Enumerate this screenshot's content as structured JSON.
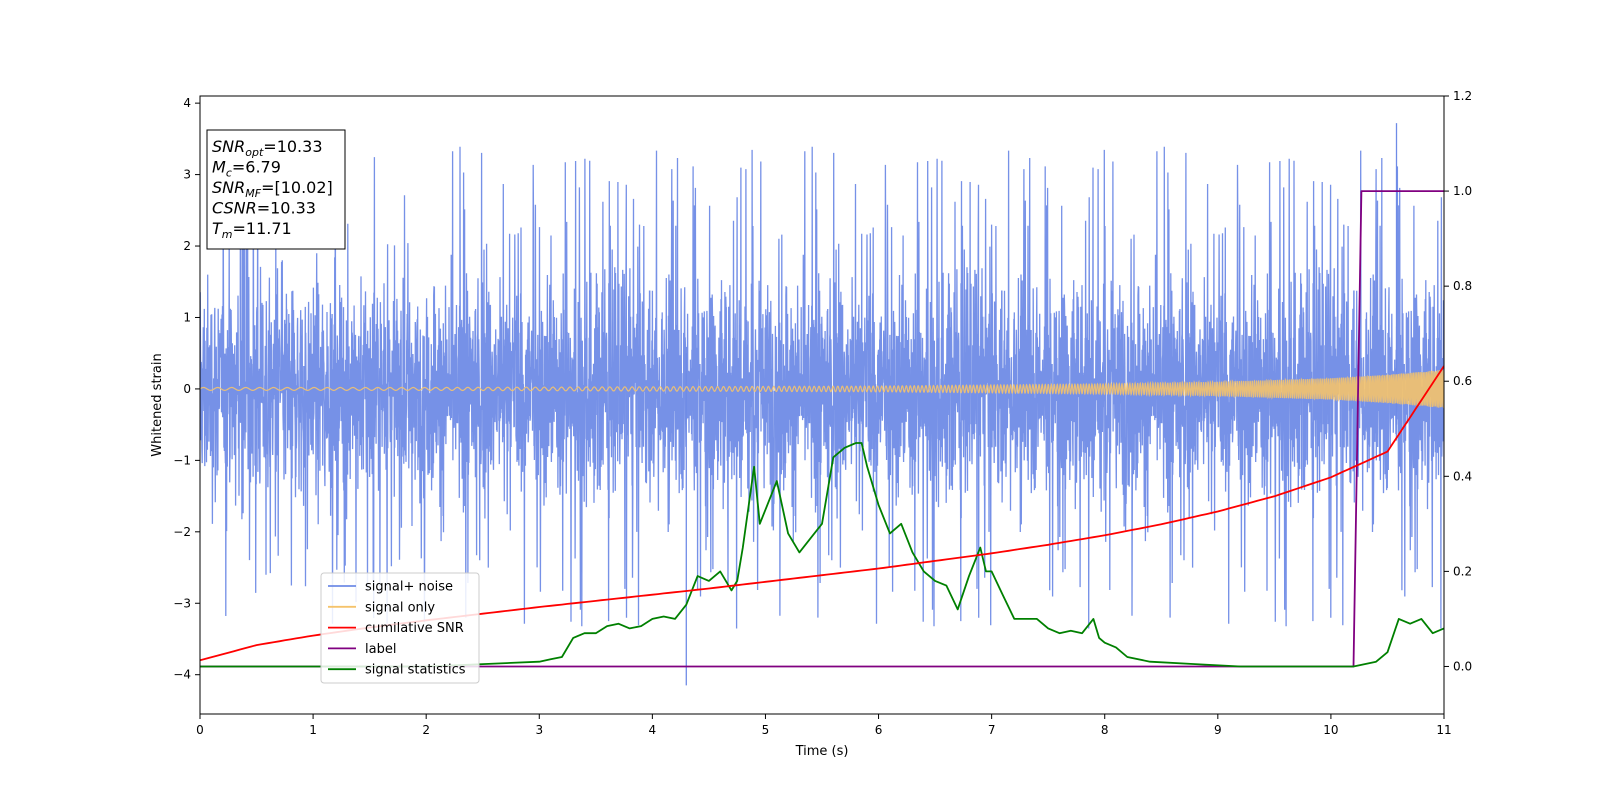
{
  "chart_data": {
    "type": "line",
    "xlabel": "Time (s)",
    "ylabel": "Whitened strain",
    "xlim": [
      0,
      11
    ],
    "ylim": [
      -4.55,
      4.1
    ],
    "y2lim": [
      -0.1,
      1.2
    ],
    "xticks": [
      0,
      1,
      2,
      3,
      4,
      5,
      6,
      7,
      8,
      9,
      10,
      11
    ],
    "yticks": [
      -4,
      -3,
      -2,
      -1,
      0,
      1,
      2,
      3,
      4
    ],
    "y2ticks": [
      0.0,
      0.2,
      0.4,
      0.6,
      0.8,
      1.0,
      1.2
    ],
    "xtick_labels": [
      "0",
      "1",
      "2",
      "3",
      "4",
      "5",
      "6",
      "7",
      "8",
      "9",
      "10",
      "11"
    ],
    "ytick_labels": [
      "−4",
      "−3",
      "−2",
      "−1",
      "0",
      "1",
      "2",
      "3",
      "4"
    ],
    "y2tick_labels": [
      "0.0",
      "0.2",
      "0.4",
      "0.6",
      "0.8",
      "1.0",
      "1.2"
    ],
    "grid": false,
    "legend_position": "lower-left",
    "annotation_box": {
      "position": "upper-left",
      "lines": [
        {
          "sym": "SNR",
          "sub": "opt",
          "val": "=10.33"
        },
        {
          "sym": "M",
          "sub": "c",
          "val": "=6.79"
        },
        {
          "sym": "SNR",
          "sub": "MF",
          "val": "=[10.02]"
        },
        {
          "sym": "CSNR",
          "sub": "",
          "val": "=10.33"
        },
        {
          "sym": "T",
          "sub": "m",
          "val": "=11.71"
        }
      ]
    },
    "series": [
      {
        "name": "signal+ noise",
        "color": "#6f8be6",
        "axis": "left",
        "noise_envelope": {
          "upper_typical": 2.0,
          "lower_typical": -2.0,
          "peak_max": 3.72,
          "peak_min": -4.15
        }
      },
      {
        "name": "signal only",
        "color": "#f5c36b",
        "axis": "left",
        "amplitude_envelope": {
          "t": [
            0,
            2,
            4,
            6,
            8,
            9,
            10,
            10.5,
            11
          ],
          "amp": [
            0.02,
            0.02,
            0.03,
            0.04,
            0.07,
            0.1,
            0.15,
            0.2,
            0.27
          ]
        }
      },
      {
        "name": "cumilative SNR",
        "color": "#ff0000",
        "axis": "right",
        "x": [
          0,
          0.5,
          1,
          1.5,
          2,
          2.5,
          3,
          3.5,
          4,
          4.5,
          5,
          5.5,
          6,
          6.5,
          7,
          7.5,
          8,
          8.5,
          9,
          9.5,
          10,
          10.5,
          11
        ],
        "y": [
          0.013,
          0.045,
          0.065,
          0.082,
          0.097,
          0.111,
          0.125,
          0.138,
          0.151,
          0.164,
          0.178,
          0.192,
          0.206,
          0.222,
          0.238,
          0.256,
          0.276,
          0.299,
          0.326,
          0.358,
          0.398,
          0.452,
          0.632
        ]
      },
      {
        "name": "label",
        "color": "#800080",
        "axis": "right",
        "x": [
          0,
          10.2,
          10.27,
          11
        ],
        "y": [
          0.0,
          0.0,
          1.0,
          1.0
        ]
      },
      {
        "name": "signal statistics",
        "color": "#008000",
        "axis": "right",
        "x": [
          0,
          1,
          2,
          2.5,
          3,
          3.1,
          3.2,
          3.3,
          3.4,
          3.5,
          3.6,
          3.7,
          3.8,
          3.9,
          4.0,
          4.1,
          4.2,
          4.3,
          4.4,
          4.5,
          4.6,
          4.7,
          4.75,
          4.8,
          4.9,
          4.95,
          5.0,
          5.1,
          5.2,
          5.3,
          5.4,
          5.5,
          5.6,
          5.7,
          5.8,
          5.85,
          5.9,
          6.0,
          6.1,
          6.2,
          6.3,
          6.4,
          6.5,
          6.6,
          6.7,
          6.8,
          6.9,
          6.95,
          7.0,
          7.1,
          7.2,
          7.3,
          7.4,
          7.5,
          7.6,
          7.7,
          7.8,
          7.9,
          7.95,
          8.0,
          8.1,
          8.2,
          8.4,
          8.8,
          9.2,
          9.6,
          10.0,
          10.2,
          10.3,
          10.4,
          10.5,
          10.6,
          10.7,
          10.8,
          10.9,
          11.0
        ],
        "y": [
          0.0,
          0.0,
          0.0,
          0.005,
          0.01,
          0.015,
          0.02,
          0.06,
          0.07,
          0.07,
          0.085,
          0.09,
          0.08,
          0.085,
          0.1,
          0.105,
          0.1,
          0.13,
          0.19,
          0.18,
          0.2,
          0.16,
          0.18,
          0.25,
          0.42,
          0.3,
          0.33,
          0.39,
          0.28,
          0.24,
          0.27,
          0.3,
          0.44,
          0.46,
          0.47,
          0.47,
          0.42,
          0.34,
          0.28,
          0.3,
          0.24,
          0.2,
          0.18,
          0.17,
          0.12,
          0.19,
          0.25,
          0.2,
          0.2,
          0.15,
          0.1,
          0.1,
          0.1,
          0.08,
          0.07,
          0.075,
          0.07,
          0.1,
          0.06,
          0.05,
          0.04,
          0.02,
          0.01,
          0.005,
          0.0,
          0.0,
          0.0,
          0.0,
          0.005,
          0.01,
          0.03,
          0.1,
          0.09,
          0.1,
          0.07,
          0.08
        ]
      }
    ]
  }
}
